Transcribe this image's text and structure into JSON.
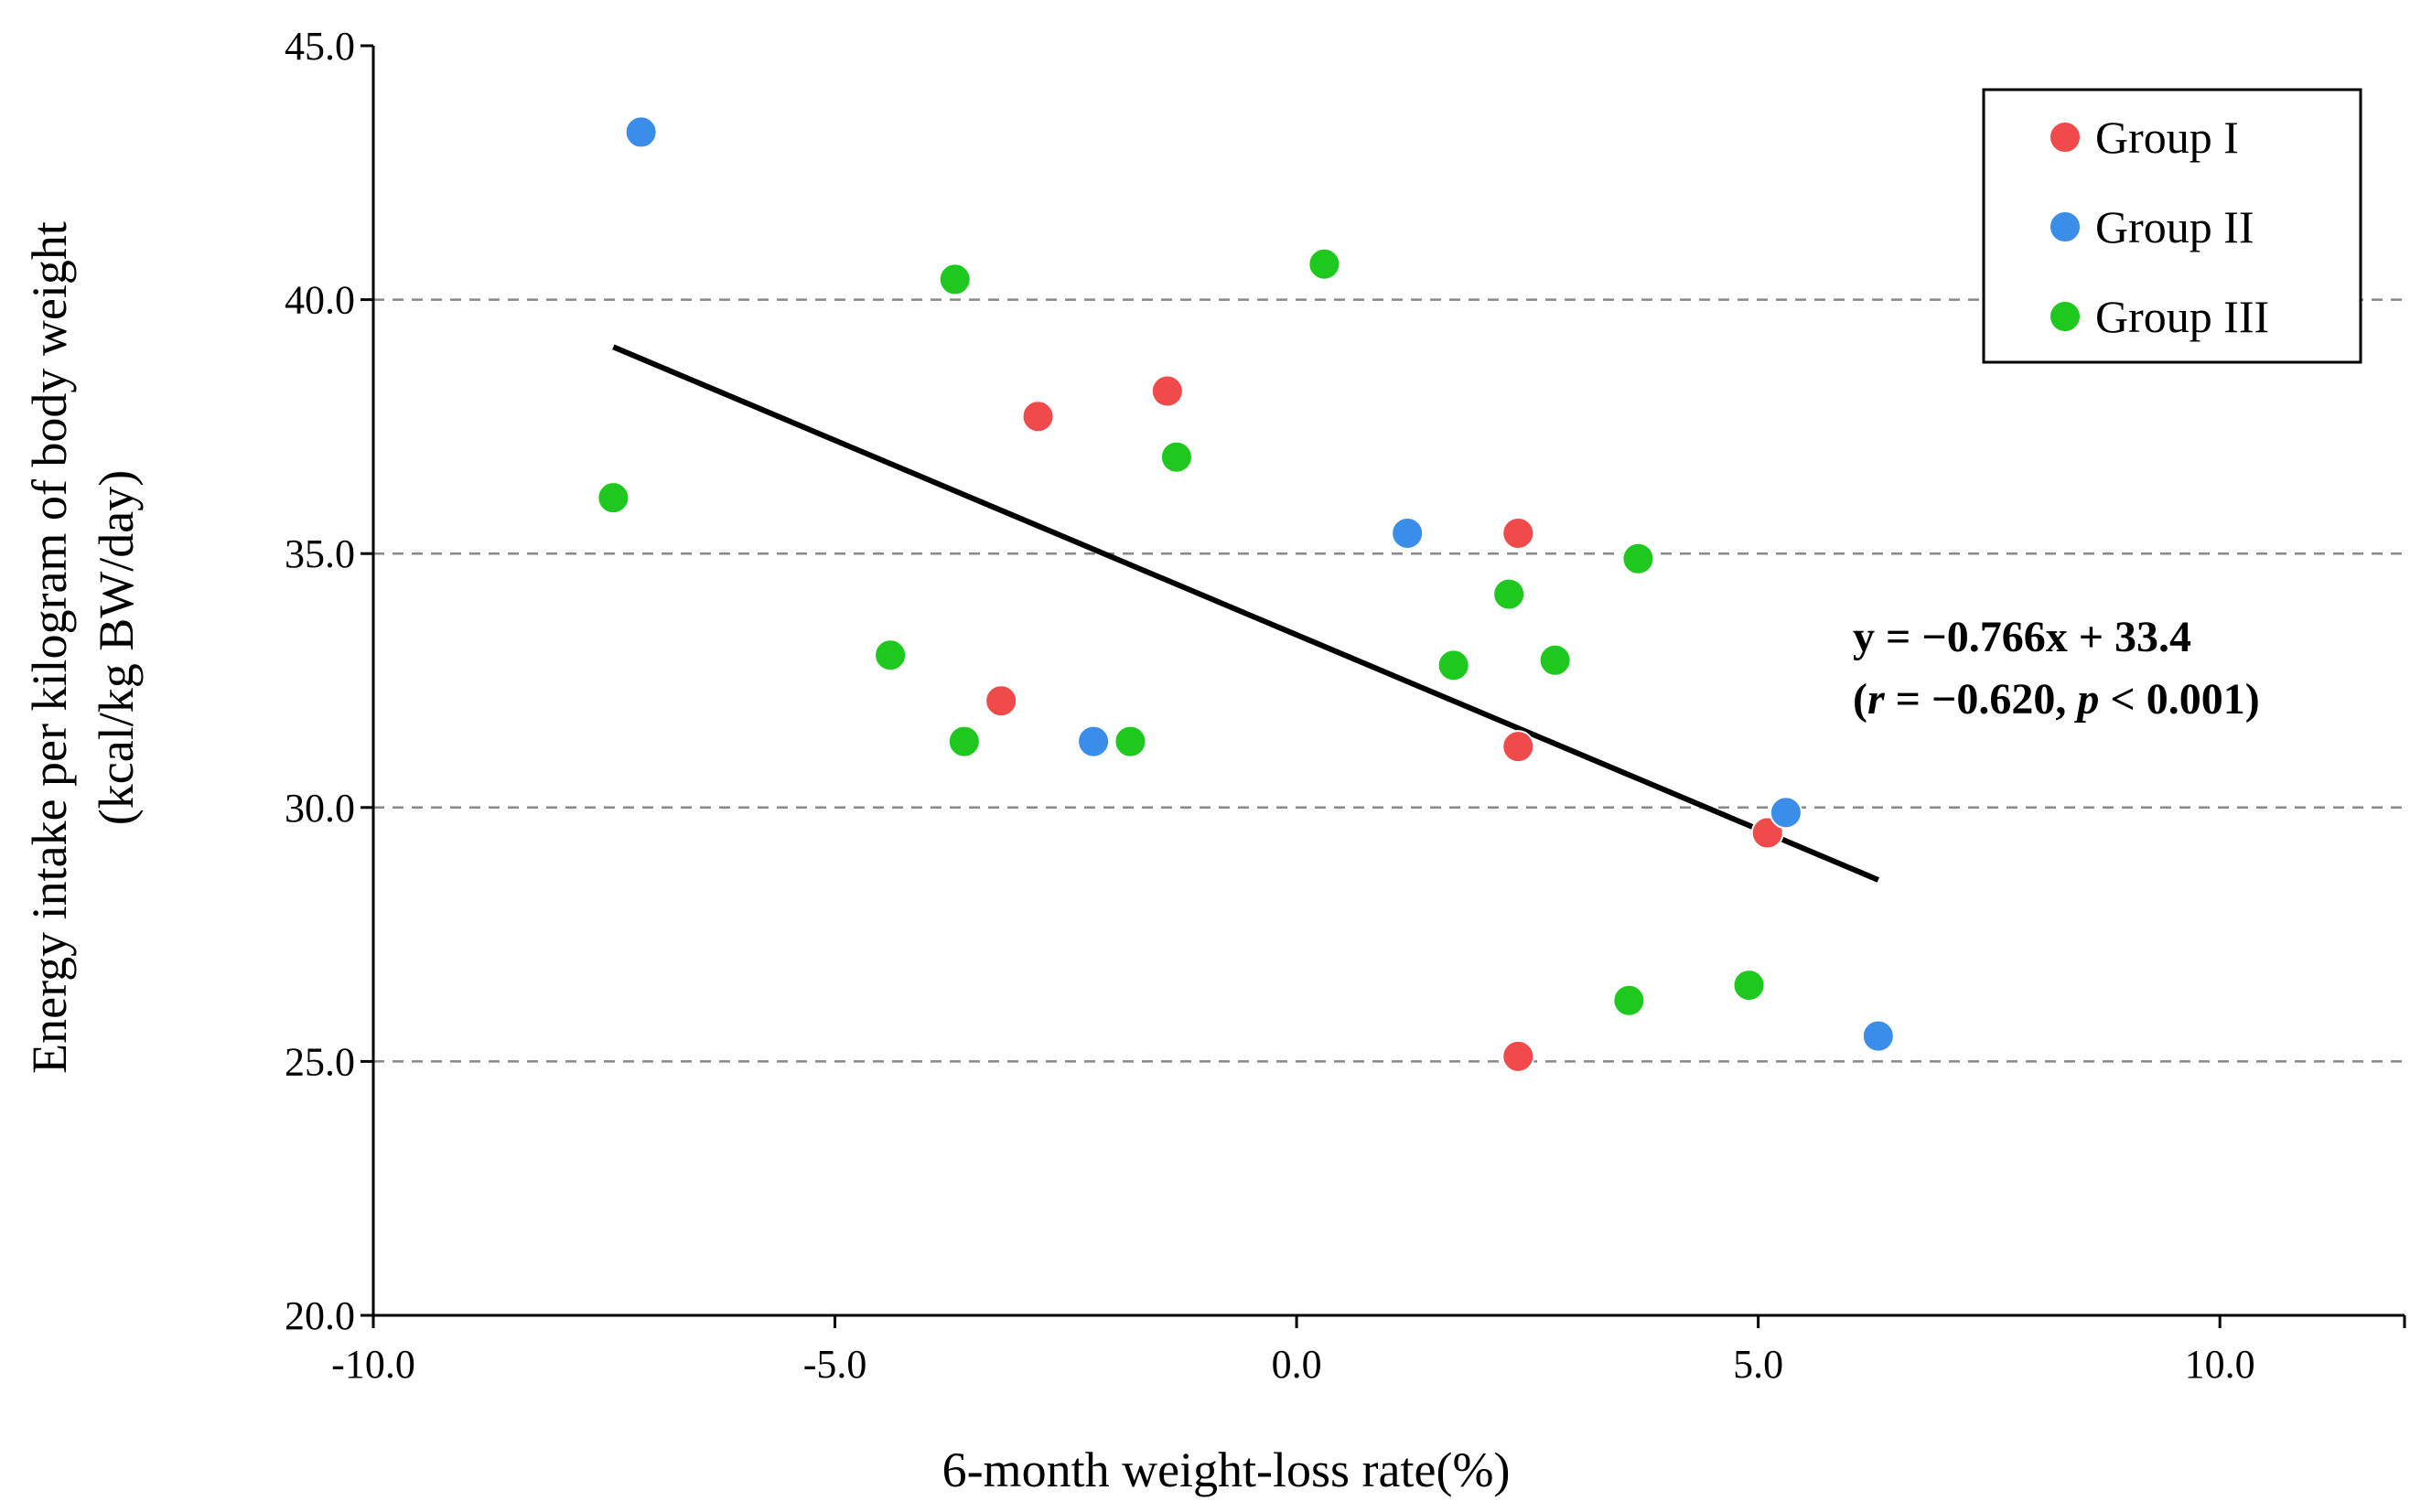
{
  "chart_data": {
    "type": "scatter",
    "xlabel": "6-month weight-loss rate(%)",
    "ylabel_line1": "Energy intake per kilogram of body weight",
    "ylabel_line2": "(kcal/kg BW/day)",
    "xlim": [
      -10,
      12
    ],
    "ylim": [
      20,
      45
    ],
    "x_ticks": [
      -10,
      -5,
      0,
      5,
      10
    ],
    "x_tick_labels": [
      "-10.0",
      "-5.0",
      "0.0",
      "5.0",
      "10.0"
    ],
    "y_ticks": [
      20,
      25,
      30,
      35,
      40,
      45
    ],
    "y_tick_labels": [
      "20.0",
      "25.0",
      "30.0",
      "35.0",
      "40.0",
      "45.0"
    ],
    "gridlines_y": [
      25,
      30,
      35,
      40
    ],
    "legend_position": "top-right",
    "series": [
      {
        "name": "Group I",
        "color": "#f04a4a",
        "points": [
          {
            "x": -2.8,
            "y": 37.7
          },
          {
            "x": -1.4,
            "y": 38.2
          },
          {
            "x": -3.2,
            "y": 32.1
          },
          {
            "x": 2.4,
            "y": 35.4
          },
          {
            "x": 2.4,
            "y": 31.2
          },
          {
            "x": 2.4,
            "y": 25.1
          },
          {
            "x": 5.1,
            "y": 29.5
          }
        ]
      },
      {
        "name": "Group II",
        "color": "#3a8de8",
        "points": [
          {
            "x": -7.1,
            "y": 43.3
          },
          {
            "x": -2.2,
            "y": 31.3
          },
          {
            "x": 1.2,
            "y": 35.4
          },
          {
            "x": 5.3,
            "y": 29.9
          },
          {
            "x": 6.3,
            "y": 25.5
          }
        ]
      },
      {
        "name": "Group III",
        "color": "#1ec81e",
        "points": [
          {
            "x": -3.7,
            "y": 40.4
          },
          {
            "x": 0.3,
            "y": 40.7
          },
          {
            "x": -7.4,
            "y": 36.1
          },
          {
            "x": -1.3,
            "y": 36.9
          },
          {
            "x": -4.4,
            "y": 33.0
          },
          {
            "x": -3.6,
            "y": 31.3
          },
          {
            "x": -1.8,
            "y": 31.3
          },
          {
            "x": 1.7,
            "y": 32.8
          },
          {
            "x": 2.3,
            "y": 34.2
          },
          {
            "x": 2.8,
            "y": 32.9
          },
          {
            "x": 3.7,
            "y": 34.9
          },
          {
            "x": 3.6,
            "y": 26.2
          },
          {
            "x": 4.9,
            "y": 26.5
          }
        ]
      }
    ],
    "trendline": {
      "slope": -0.766,
      "intercept": 33.4,
      "x_start": -7.4,
      "x_end": 6.3,
      "color": "#000000"
    },
    "annotation": {
      "equation": "y = −0.766x + 33.4",
      "stats_open": "(",
      "r_label": "r",
      "r_value": " = −0.620, ",
      "p_label": "p",
      "p_value": " < 0.001)"
    }
  }
}
